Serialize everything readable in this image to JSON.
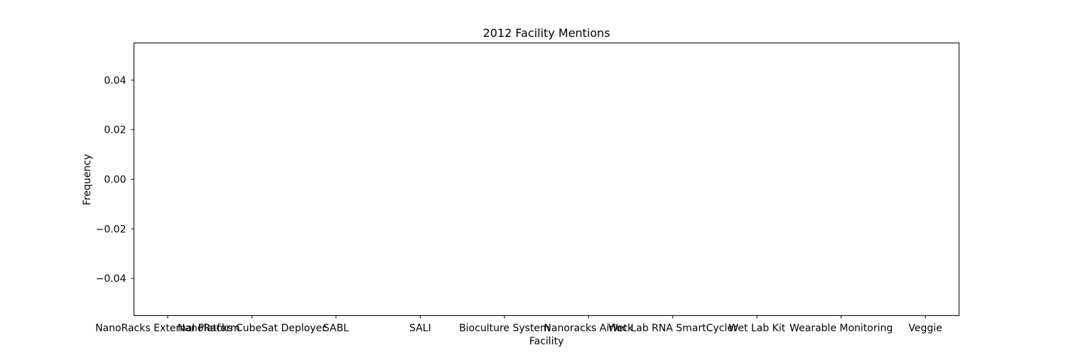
{
  "chart_data": {
    "type": "bar",
    "title": "2012 Facility Mentions",
    "xlabel": "Facility",
    "ylabel": "Frequency",
    "categories": [
      "NanoRacks External Platform",
      "NanoRacks CubeSat Deployer",
      "SABL",
      "SALI",
      "Bioculture System",
      "Nanoracks Airlock",
      "Wet Lab RNA SmartCycler",
      "Wet Lab Kit",
      "Wearable Monitoring",
      "Veggie"
    ],
    "values": [
      0,
      0,
      0,
      0,
      0,
      0,
      0,
      0,
      0,
      0
    ],
    "ylim": [
      -0.055,
      0.055
    ],
    "yticks": [
      "0.04",
      "0.02",
      "0.00",
      "−0.02",
      "−0.04"
    ],
    "ytick_values": [
      0.04,
      0.02,
      0.0,
      -0.02,
      -0.04
    ],
    "grid": false,
    "legend": "none",
    "colors": {
      "axis": "#000000",
      "background": "#ffffff",
      "bar": "#1f77b4"
    }
  }
}
